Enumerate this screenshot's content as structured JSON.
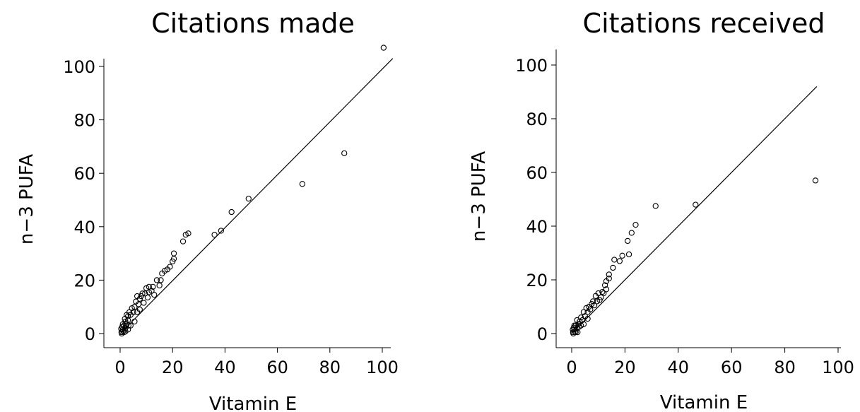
{
  "chart_data": [
    {
      "type": "scatter",
      "title": "Citations made",
      "xlabel": "Vitamin E",
      "ylabel": "n−3 PUFA",
      "xlim": [
        0,
        100
      ],
      "ylim": [
        0,
        100
      ],
      "xticks": [
        "0",
        "20",
        "40",
        "60",
        "80",
        "100"
      ],
      "yticks": [
        "0",
        "20",
        "40",
        "60",
        "80",
        "100"
      ],
      "grid": false,
      "legend": "none",
      "fit_line": {
        "x": [
          0,
          104
        ],
        "y": [
          0,
          103
        ]
      },
      "points": [
        [
          100.5,
          107
        ],
        [
          85.5,
          67.5
        ],
        [
          69.5,
          56
        ],
        [
          49,
          50.5
        ],
        [
          42.5,
          45.5
        ],
        [
          38.5,
          38.5
        ],
        [
          36,
          37
        ],
        [
          26,
          37.5
        ],
        [
          25,
          37
        ],
        [
          24,
          34.5
        ],
        [
          20.5,
          30
        ],
        [
          20.5,
          28
        ],
        [
          20,
          27
        ],
        [
          19,
          25
        ],
        [
          18,
          24
        ],
        [
          17,
          23.5
        ],
        [
          16,
          22.5
        ],
        [
          15.5,
          20
        ],
        [
          14,
          20
        ],
        [
          15,
          18
        ],
        [
          12.5,
          17.5
        ],
        [
          11,
          17.5
        ],
        [
          10,
          17
        ],
        [
          11,
          15.5
        ],
        [
          9.5,
          15
        ],
        [
          8.5,
          15
        ],
        [
          8,
          14
        ],
        [
          7.5,
          13
        ],
        [
          6.5,
          14
        ],
        [
          6,
          12
        ],
        [
          7,
          11
        ],
        [
          5.5,
          10
        ],
        [
          4.5,
          9.5
        ],
        [
          5,
          8
        ],
        [
          3.5,
          8
        ],
        [
          4,
          7
        ],
        [
          3,
          6.5
        ],
        [
          2.5,
          7
        ],
        [
          3,
          5
        ],
        [
          2,
          4.5
        ],
        [
          2.5,
          3.5
        ],
        [
          1.5,
          3
        ],
        [
          2,
          2
        ],
        [
          1,
          1.5
        ],
        [
          1.5,
          0.5
        ],
        [
          0.5,
          0.5
        ],
        [
          1,
          3.5
        ],
        [
          0.8,
          2.5
        ],
        [
          2.2,
          2.8
        ],
        [
          3.2,
          3
        ],
        [
          1.2,
          1
        ],
        [
          0.4,
          1.8
        ],
        [
          5.5,
          4.5
        ],
        [
          6.5,
          8
        ],
        [
          7.5,
          9
        ],
        [
          9,
          11.5
        ],
        [
          10.5,
          13.5
        ],
        [
          12,
          16
        ],
        [
          13,
          14.5
        ],
        [
          0.6,
          0
        ],
        [
          2,
          0.8
        ],
        [
          3,
          1.5
        ],
        [
          4,
          3
        ],
        [
          1.8,
          5.5
        ]
      ]
    },
    {
      "type": "scatter",
      "title": "Citations received",
      "xlabel": "Vitamin E",
      "ylabel": "n−3 PUFA",
      "xlim": [
        0,
        100
      ],
      "ylim": [
        0,
        100
      ],
      "xticks": [
        "0",
        "20",
        "40",
        "60",
        "80",
        "100"
      ],
      "yticks": [
        "0",
        "20",
        "40",
        "60",
        "80",
        "100"
      ],
      "grid": false,
      "legend": "none",
      "fit_line": {
        "x": [
          0,
          92
        ],
        "y": [
          0,
          92
        ]
      },
      "points": [
        [
          91.5,
          57
        ],
        [
          46.5,
          48
        ],
        [
          31.5,
          47.5
        ],
        [
          24,
          40.5
        ],
        [
          22.5,
          37.5
        ],
        [
          21,
          34.5
        ],
        [
          21.5,
          29.5
        ],
        [
          19,
          29
        ],
        [
          18,
          27
        ],
        [
          16,
          27.5
        ],
        [
          15.5,
          24.5
        ],
        [
          14,
          22
        ],
        [
          14,
          20.5
        ],
        [
          13,
          19.5
        ],
        [
          12.5,
          18
        ],
        [
          13,
          16.5
        ],
        [
          11.5,
          15.5
        ],
        [
          10,
          15
        ],
        [
          9,
          14
        ],
        [
          10.5,
          12.5
        ],
        [
          8,
          12
        ],
        [
          7.5,
          11
        ],
        [
          6.5,
          10
        ],
        [
          5.5,
          9.5
        ],
        [
          6,
          8
        ],
        [
          4.5,
          8
        ],
        [
          5,
          6.5
        ],
        [
          3.5,
          6
        ],
        [
          4,
          5
        ],
        [
          3,
          4.5
        ],
        [
          2.5,
          3.5
        ],
        [
          2,
          5
        ],
        [
          1.5,
          3
        ],
        [
          2,
          2
        ],
        [
          1,
          1.5
        ],
        [
          1.5,
          0.5
        ],
        [
          0.5,
          0.5
        ],
        [
          1,
          3
        ],
        [
          0.8,
          2.2
        ],
        [
          2.8,
          2.5
        ],
        [
          3.5,
          3
        ],
        [
          1.2,
          0.8
        ],
        [
          0.4,
          1.5
        ],
        [
          7,
          9
        ],
        [
          8.5,
          10.5
        ],
        [
          9.5,
          12
        ],
        [
          11,
          13.5
        ],
        [
          12,
          15
        ],
        [
          4.5,
          3.5
        ],
        [
          6,
          5.5
        ],
        [
          2.2,
          0.5
        ],
        [
          0.6,
          0
        ]
      ]
    }
  ]
}
